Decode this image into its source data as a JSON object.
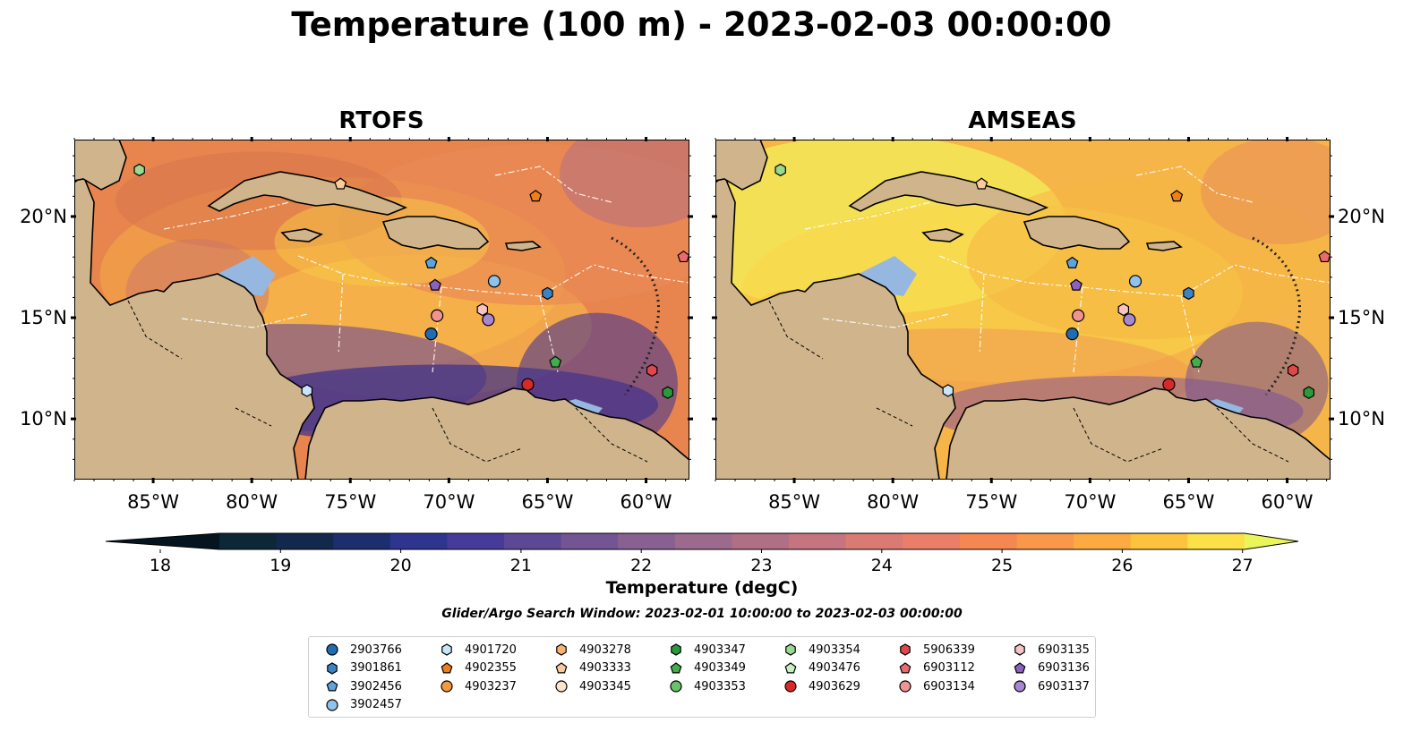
{
  "title": "Temperature (100 m) - 2023-02-03 00:00:00",
  "panels": [
    {
      "title": "RTOFS",
      "background": "deep"
    },
    {
      "title": "AMSEAS",
      "background": "light"
    }
  ],
  "lon_ticks": [
    "85°W",
    "80°W",
    "75°W",
    "70°W",
    "65°W",
    "60°W"
  ],
  "lat_ticks": [
    "20°N",
    "15°N",
    "10°N"
  ],
  "colorbar": {
    "label": "Temperature (degC)",
    "ticks": [
      "18",
      "19",
      "20",
      "21",
      "22",
      "23",
      "24",
      "25",
      "26",
      "27"
    ],
    "colors": [
      "#0b2738",
      "#12284d",
      "#1c2e6e",
      "#2f348f",
      "#463b99",
      "#5d4896",
      "#735594",
      "#886192",
      "#9c6a8c",
      "#b06f84",
      "#c47580",
      "#d97b73",
      "#e97f68",
      "#f48752",
      "#f9974a",
      "#fbab41",
      "#fdc23e",
      "#fbe048"
    ],
    "under": "#04151f",
    "over": "#eaf55a"
  },
  "search_window": "Glider/Argo Search Window: 2023-02-01 10:00:00 to 2023-02-03 00:00:00",
  "legend": [
    {
      "label": "2903766",
      "marker": "circle",
      "color": "#1f6cb0"
    },
    {
      "label": "3901861",
      "marker": "hexagon",
      "color": "#3b84c4"
    },
    {
      "label": "3902456",
      "marker": "pentagon",
      "color": "#5ea3dd"
    },
    {
      "label": "3902457",
      "marker": "circle",
      "color": "#8fc3ec"
    },
    {
      "label": "4901720",
      "marker": "hexagon",
      "color": "#c9e5fa"
    },
    {
      "label": "4902355",
      "marker": "pentagon",
      "color": "#ee7f16"
    },
    {
      "label": "4903237",
      "marker": "circle",
      "color": "#f59a3d"
    },
    {
      "label": "4903278",
      "marker": "hexagon",
      "color": "#f9b470"
    },
    {
      "label": "4903333",
      "marker": "pentagon",
      "color": "#fbcb9c"
    },
    {
      "label": "4903345",
      "marker": "circle",
      "color": "#fde4cb"
    },
    {
      "label": "4903347",
      "marker": "hexagon",
      "color": "#2a9a3a"
    },
    {
      "label": "4903349",
      "marker": "pentagon",
      "color": "#43ad4b"
    },
    {
      "label": "4903353",
      "marker": "circle",
      "color": "#6ac26a"
    },
    {
      "label": "4903354",
      "marker": "hexagon",
      "color": "#98da90"
    },
    {
      "label": "4903476",
      "marker": "pentagon",
      "color": "#caf0bf"
    },
    {
      "label": "4903629",
      "marker": "circle",
      "color": "#d62a28"
    },
    {
      "label": "5906339",
      "marker": "hexagon",
      "color": "#e0474a"
    },
    {
      "label": "6903112",
      "marker": "pentagon",
      "color": "#ea6b6d"
    },
    {
      "label": "6903134",
      "marker": "circle",
      "color": "#f19393"
    },
    {
      "label": "6903135",
      "marker": "hexagon",
      "color": "#f8c3c5"
    },
    {
      "label": "6903136",
      "marker": "pentagon",
      "color": "#8a61bd"
    },
    {
      "label": "6903137",
      "marker": "circle",
      "color": "#a886d2"
    }
  ],
  "floats": [
    {
      "id": "4903354",
      "lon": -85.7,
      "lat": 22.3
    },
    {
      "id": "4903333",
      "lon": -75.5,
      "lat": 21.6
    },
    {
      "id": "4902355",
      "lon": -65.6,
      "lat": 21.0
    },
    {
      "id": "6903112",
      "lon": -58.1,
      "lat": 18.0
    },
    {
      "id": "3902456",
      "lon": -70.9,
      "lat": 17.7
    },
    {
      "id": "6903136",
      "lon": -70.7,
      "lat": 16.6
    },
    {
      "id": "3902457",
      "lon": -67.7,
      "lat": 16.8
    },
    {
      "id": "3901861",
      "lon": -65.0,
      "lat": 16.2
    },
    {
      "id": "6903134",
      "lon": -70.6,
      "lat": 15.1
    },
    {
      "id": "6903135",
      "lon": -68.3,
      "lat": 15.4
    },
    {
      "id": "6903137",
      "lon": -68.0,
      "lat": 14.9
    },
    {
      "id": "2903766",
      "lon": -70.9,
      "lat": 14.2
    },
    {
      "id": "4903349",
      "lon": -64.6,
      "lat": 12.8
    },
    {
      "id": "5906339",
      "lon": -59.7,
      "lat": 12.4
    },
    {
      "id": "4901720",
      "lon": -77.2,
      "lat": 11.4
    },
    {
      "id": "4903629",
      "lon": -66.0,
      "lat": 11.7
    },
    {
      "id": "4903347",
      "lon": -58.9,
      "lat": 11.3
    }
  ]
}
